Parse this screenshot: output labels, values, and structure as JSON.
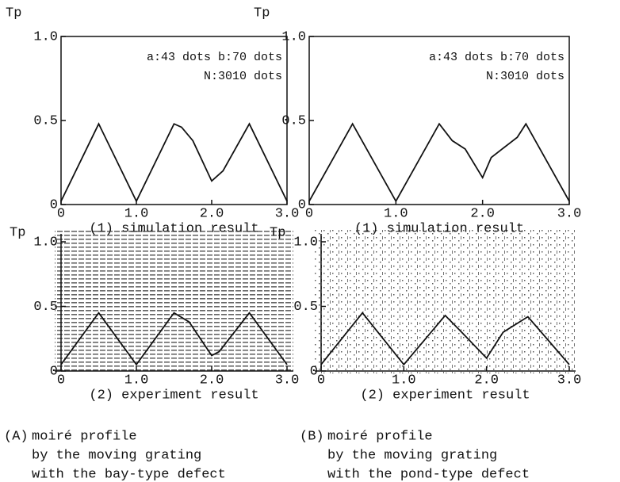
{
  "chart_data": [
    {
      "type": "line",
      "y_label": "Tp",
      "caption": "(1) simulation result",
      "annotations": [
        "a:43 dots b:70 dots",
        "N:3010 dots"
      ],
      "x": [
        0,
        0.5,
        1,
        1.5,
        1.6,
        1.75,
        2,
        2.15,
        2.5,
        3
      ],
      "values": [
        0.02,
        0.48,
        0.02,
        0.48,
        0.46,
        0.38,
        0.14,
        0.2,
        0.48,
        0.02
      ],
      "color": "#111",
      "xlim": [
        0,
        3
      ],
      "ylim": [
        0,
        1
      ],
      "xticks": [
        0,
        {
          "value": 1,
          "label": "1.0"
        },
        {
          "value": 2,
          "label": "2.0"
        },
        {
          "value": 3,
          "label": "3.0"
        }
      ],
      "yticks": [
        0,
        0.5,
        {
          "value": 1,
          "label": "1.0"
        }
      ]
    },
    {
      "type": "line",
      "y_label": "Tp",
      "caption": "(1) simulation result",
      "annotations": [
        "a:43 dots b:70 dots",
        "N:3010 dots"
      ],
      "x": [
        0,
        0.5,
        1,
        1.5,
        1.65,
        1.8,
        2,
        2.1,
        2.3,
        2.4,
        2.5,
        3
      ],
      "values": [
        0.02,
        0.48,
        0.02,
        0.48,
        0.38,
        0.33,
        0.16,
        0.28,
        0.36,
        0.4,
        0.48,
        0.02
      ],
      "color": "#111",
      "xlim": [
        0,
        3
      ],
      "ylim": [
        0,
        1
      ],
      "xticks": [
        0,
        {
          "value": 1,
          "label": "1.0"
        },
        {
          "value": 2,
          "label": "2.0"
        },
        {
          "value": 3,
          "label": "3.0"
        }
      ],
      "yticks": [
        0,
        0.5,
        {
          "value": 1,
          "label": "1.0"
        }
      ]
    },
    {
      "type": "line",
      "y_label": "Tp",
      "caption": "(2) experiment result",
      "x": [
        0,
        0.5,
        1,
        1.5,
        1.7,
        2,
        2.1,
        2.5,
        3
      ],
      "values": [
        0.05,
        0.45,
        0.05,
        0.45,
        0.38,
        0.12,
        0.15,
        0.45,
        0.05
      ],
      "color": "#111",
      "xlim": [
        0,
        3
      ],
      "ylim": [
        0,
        1
      ],
      "xticks": [
        0,
        {
          "value": 1,
          "label": "1.0"
        },
        {
          "value": 2,
          "label": "2.0"
        },
        {
          "value": 3,
          "label": "3.0"
        }
      ],
      "yticks": [
        0,
        0.5,
        {
          "value": 1,
          "label": "1.0"
        }
      ]
    },
    {
      "type": "line",
      "y_label": "Tp",
      "caption": "(2) experiment result",
      "x": [
        0,
        0.5,
        1,
        1.5,
        1.7,
        2,
        2.2,
        2.5,
        3
      ],
      "values": [
        0.05,
        0.45,
        0.05,
        0.43,
        0.3,
        0.1,
        0.3,
        0.42,
        0.05
      ],
      "color": "#111",
      "xlim": [
        0,
        3
      ],
      "ylim": [
        0,
        1
      ],
      "xticks": [
        0,
        {
          "value": 1,
          "label": "1.0"
        },
        {
          "value": 2,
          "label": "2.0"
        },
        {
          "value": 3,
          "label": "3.0"
        }
      ],
      "yticks": [
        0,
        0.5,
        {
          "value": 1,
          "label": "1.0"
        }
      ]
    }
  ],
  "captions": [
    {
      "label": "(A)",
      "lines": [
        "moiré profile",
        "by the moving grating",
        "with the bay-type defect"
      ]
    },
    {
      "label": "(B)",
      "lines": [
        "moiré profile",
        "by the moving grating",
        "with the pond-type defect"
      ]
    }
  ]
}
